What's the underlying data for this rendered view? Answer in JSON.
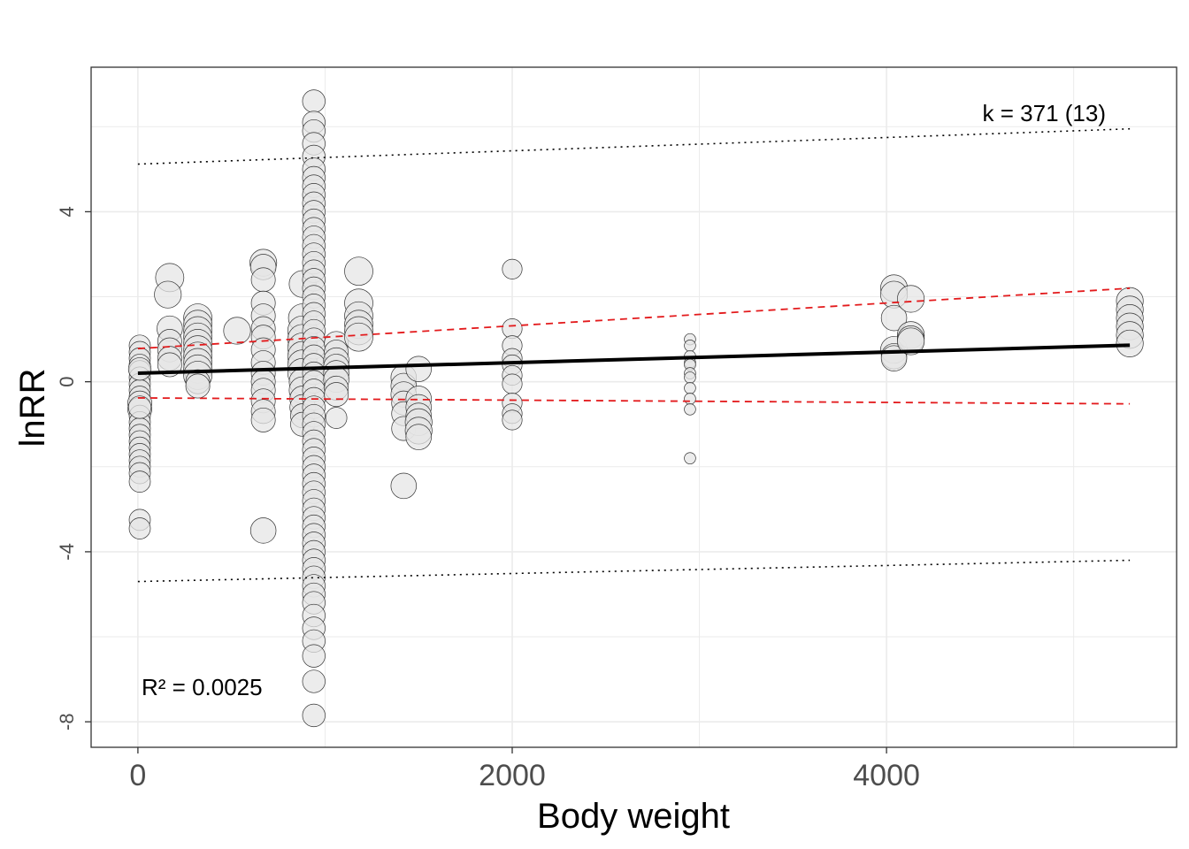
{
  "chart_data": {
    "type": "scatter",
    "title": "",
    "xlabel": "Body weight",
    "ylabel": "lnRR",
    "xlim": [
      -250,
      5550
    ],
    "ylim": [
      -8.6,
      7.4
    ],
    "x_ticks": [
      0,
      2000,
      4000
    ],
    "x_tick_labels": [
      "0",
      "2000",
      "4000"
    ],
    "y_ticks": [
      -8,
      -4,
      0,
      4
    ],
    "y_tick_labels": [
      "-8",
      "-4",
      "0",
      "4"
    ],
    "grid": true,
    "legend": "none",
    "annotations": {
      "k": "k = 371 (13)",
      "r2": "R² = 0.0025"
    },
    "colors": {
      "point_fill": "#e6e6e6",
      "point_stroke": "#333333",
      "fit_line": "#000000",
      "ci_line": "#e31a1c",
      "pi_line": "#000000",
      "grid": "#ebebeb",
      "panel_border": "#333333"
    },
    "fit": {
      "x": [
        0,
        5300
      ],
      "y": [
        0.2,
        0.86
      ]
    },
    "ci_upper": {
      "x": [
        0,
        5300
      ],
      "y": [
        0.78,
        2.2
      ]
    },
    "ci_lower": {
      "x": [
        0,
        5300
      ],
      "y": [
        -0.38,
        -0.52
      ]
    },
    "pi_upper": {
      "x": [
        0,
        5300
      ],
      "y": [
        5.12,
        5.95
      ]
    },
    "pi_lower": {
      "x": [
        0,
        5300
      ],
      "y": [
        -4.7,
        -4.2
      ]
    },
    "points": [
      {
        "x": 10,
        "y": 0.85,
        "s": 0.5
      },
      {
        "x": 10,
        "y": 0.7,
        "s": 0.5
      },
      {
        "x": 10,
        "y": 0.55,
        "s": 0.5
      },
      {
        "x": 10,
        "y": 0.4,
        "s": 0.5
      },
      {
        "x": 10,
        "y": 0.25,
        "s": 0.5
      },
      {
        "x": 10,
        "y": 0.1,
        "s": 0.5
      },
      {
        "x": 10,
        "y": -0.05,
        "s": 0.5
      },
      {
        "x": 10,
        "y": -0.2,
        "s": 0.5
      },
      {
        "x": 10,
        "y": -0.35,
        "s": 0.5
      },
      {
        "x": 10,
        "y": -0.5,
        "s": 0.6
      },
      {
        "x": 10,
        "y": -0.65,
        "s": 0.6
      },
      {
        "x": 10,
        "y": -0.8,
        "s": 0.5
      },
      {
        "x": 10,
        "y": -0.95,
        "s": 0.5
      },
      {
        "x": 10,
        "y": -1.1,
        "s": 0.5
      },
      {
        "x": 10,
        "y": -1.25,
        "s": 0.5
      },
      {
        "x": 10,
        "y": -1.4,
        "s": 0.5
      },
      {
        "x": 10,
        "y": -1.55,
        "s": 0.5
      },
      {
        "x": 10,
        "y": -1.7,
        "s": 0.5
      },
      {
        "x": 10,
        "y": -1.85,
        "s": 0.5
      },
      {
        "x": 10,
        "y": -2.0,
        "s": 0.5
      },
      {
        "x": 10,
        "y": -2.15,
        "s": 0.5
      },
      {
        "x": 10,
        "y": -2.35,
        "s": 0.5
      },
      {
        "x": 10,
        "y": -3.25,
        "s": 0.5
      },
      {
        "x": 10,
        "y": -3.45,
        "s": 0.5
      },
      {
        "x": 10,
        "y": -0.6,
        "s": 0.55
      },
      {
        "x": 10,
        "y": 0.3,
        "s": 0.55
      },
      {
        "x": 170,
        "y": 2.45,
        "s": 0.75
      },
      {
        "x": 160,
        "y": 2.05,
        "s": 0.7
      },
      {
        "x": 170,
        "y": 1.25,
        "s": 0.65
      },
      {
        "x": 170,
        "y": 0.95,
        "s": 0.6
      },
      {
        "x": 170,
        "y": 0.75,
        "s": 0.6
      },
      {
        "x": 170,
        "y": 0.55,
        "s": 0.6
      },
      {
        "x": 170,
        "y": 0.4,
        "s": 0.6
      },
      {
        "x": 320,
        "y": 1.5,
        "s": 0.75
      },
      {
        "x": 320,
        "y": 1.35,
        "s": 0.75
      },
      {
        "x": 320,
        "y": 1.2,
        "s": 0.75
      },
      {
        "x": 320,
        "y": 1.05,
        "s": 0.75
      },
      {
        "x": 320,
        "y": 0.9,
        "s": 0.75
      },
      {
        "x": 320,
        "y": 0.75,
        "s": 0.75
      },
      {
        "x": 320,
        "y": 0.6,
        "s": 0.75
      },
      {
        "x": 320,
        "y": 0.45,
        "s": 0.75
      },
      {
        "x": 320,
        "y": 0.3,
        "s": 0.75
      },
      {
        "x": 320,
        "y": 0.15,
        "s": 0.75
      },
      {
        "x": 320,
        "y": 0.0,
        "s": 0.6
      },
      {
        "x": 320,
        "y": -0.1,
        "s": 0.6
      },
      {
        "x": 530,
        "y": 1.2,
        "s": 0.7
      },
      {
        "x": 670,
        "y": 2.8,
        "s": 0.7
      },
      {
        "x": 670,
        "y": 2.7,
        "s": 0.65
      },
      {
        "x": 670,
        "y": 2.4,
        "s": 0.6
      },
      {
        "x": 670,
        "y": 1.85,
        "s": 0.6
      },
      {
        "x": 670,
        "y": 1.55,
        "s": 0.6
      },
      {
        "x": 670,
        "y": 1.25,
        "s": 0.6
      },
      {
        "x": 670,
        "y": 1.05,
        "s": 0.6
      },
      {
        "x": 670,
        "y": 0.75,
        "s": 0.6
      },
      {
        "x": 670,
        "y": 0.45,
        "s": 0.6
      },
      {
        "x": 670,
        "y": 0.2,
        "s": 0.6
      },
      {
        "x": 670,
        "y": 0.0,
        "s": 0.6
      },
      {
        "x": 670,
        "y": -0.2,
        "s": 0.6
      },
      {
        "x": 670,
        "y": -0.45,
        "s": 0.6
      },
      {
        "x": 670,
        "y": -0.7,
        "s": 0.6
      },
      {
        "x": 670,
        "y": -0.9,
        "s": 0.6
      },
      {
        "x": 670,
        "y": -3.5,
        "s": 0.65
      },
      {
        "x": 880,
        "y": 2.3,
        "s": 0.7
      },
      {
        "x": 880,
        "y": 1.5,
        "s": 0.75
      },
      {
        "x": 880,
        "y": 1.2,
        "s": 0.8
      },
      {
        "x": 880,
        "y": 1.0,
        "s": 0.8
      },
      {
        "x": 880,
        "y": 0.8,
        "s": 0.8
      },
      {
        "x": 880,
        "y": 0.6,
        "s": 0.8
      },
      {
        "x": 880,
        "y": 0.4,
        "s": 0.8
      },
      {
        "x": 880,
        "y": 0.2,
        "s": 0.8
      },
      {
        "x": 880,
        "y": 0.0,
        "s": 0.7
      },
      {
        "x": 880,
        "y": -0.2,
        "s": 0.7
      },
      {
        "x": 880,
        "y": -0.4,
        "s": 0.65
      },
      {
        "x": 880,
        "y": -0.6,
        "s": 0.65
      },
      {
        "x": 880,
        "y": -0.8,
        "s": 0.6
      },
      {
        "x": 880,
        "y": -1.0,
        "s": 0.6
      },
      {
        "x": 940,
        "y": 6.6,
        "s": 0.55
      },
      {
        "x": 940,
        "y": 6.1,
        "s": 0.55
      },
      {
        "x": 940,
        "y": 5.9,
        "s": 0.55
      },
      {
        "x": 940,
        "y": 5.6,
        "s": 0.55
      },
      {
        "x": 940,
        "y": 5.3,
        "s": 0.55
      },
      {
        "x": 940,
        "y": 5.0,
        "s": 0.55
      },
      {
        "x": 940,
        "y": 4.8,
        "s": 0.55
      },
      {
        "x": 940,
        "y": 4.6,
        "s": 0.55
      },
      {
        "x": 940,
        "y": 4.4,
        "s": 0.55
      },
      {
        "x": 940,
        "y": 4.2,
        "s": 0.55
      },
      {
        "x": 940,
        "y": 4.0,
        "s": 0.55
      },
      {
        "x": 940,
        "y": 3.8,
        "s": 0.55
      },
      {
        "x": 940,
        "y": 3.6,
        "s": 0.55
      },
      {
        "x": 940,
        "y": 3.4,
        "s": 0.55
      },
      {
        "x": 940,
        "y": 3.2,
        "s": 0.55
      },
      {
        "x": 940,
        "y": 3.0,
        "s": 0.55
      },
      {
        "x": 940,
        "y": 2.8,
        "s": 0.55
      },
      {
        "x": 940,
        "y": 2.6,
        "s": 0.55
      },
      {
        "x": 940,
        "y": 2.4,
        "s": 0.55
      },
      {
        "x": 940,
        "y": 2.2,
        "s": 0.55
      },
      {
        "x": 940,
        "y": 2.0,
        "s": 0.55
      },
      {
        "x": 940,
        "y": 1.8,
        "s": 0.55
      },
      {
        "x": 940,
        "y": 1.6,
        "s": 0.55
      },
      {
        "x": 940,
        "y": 1.4,
        "s": 0.55
      },
      {
        "x": 940,
        "y": 1.2,
        "s": 0.55
      },
      {
        "x": 940,
        "y": 1.0,
        "s": 0.55
      },
      {
        "x": 940,
        "y": 0.8,
        "s": 0.55
      },
      {
        "x": 940,
        "y": 0.6,
        "s": 0.55
      },
      {
        "x": 940,
        "y": 0.4,
        "s": 0.55
      },
      {
        "x": 940,
        "y": 0.2,
        "s": 0.55
      },
      {
        "x": 940,
        "y": 0.0,
        "s": 0.55
      },
      {
        "x": 940,
        "y": -0.2,
        "s": 0.55
      },
      {
        "x": 940,
        "y": -0.4,
        "s": 0.55
      },
      {
        "x": 940,
        "y": -0.6,
        "s": 0.55
      },
      {
        "x": 940,
        "y": -0.8,
        "s": 0.55
      },
      {
        "x": 940,
        "y": -1.0,
        "s": 0.55
      },
      {
        "x": 940,
        "y": -1.2,
        "s": 0.55
      },
      {
        "x": 940,
        "y": -1.4,
        "s": 0.55
      },
      {
        "x": 940,
        "y": -1.6,
        "s": 0.55
      },
      {
        "x": 940,
        "y": -1.8,
        "s": 0.55
      },
      {
        "x": 940,
        "y": -2.0,
        "s": 0.55
      },
      {
        "x": 940,
        "y": -2.2,
        "s": 0.55
      },
      {
        "x": 940,
        "y": -2.4,
        "s": 0.55
      },
      {
        "x": 940,
        "y": -2.6,
        "s": 0.55
      },
      {
        "x": 940,
        "y": -2.8,
        "s": 0.55
      },
      {
        "x": 940,
        "y": -3.0,
        "s": 0.55
      },
      {
        "x": 940,
        "y": -3.2,
        "s": 0.55
      },
      {
        "x": 940,
        "y": -3.4,
        "s": 0.55
      },
      {
        "x": 940,
        "y": -3.6,
        "s": 0.55
      },
      {
        "x": 940,
        "y": -3.8,
        "s": 0.55
      },
      {
        "x": 940,
        "y": -4.0,
        "s": 0.55
      },
      {
        "x": 940,
        "y": -4.2,
        "s": 0.55
      },
      {
        "x": 940,
        "y": -4.4,
        "s": 0.55
      },
      {
        "x": 940,
        "y": -4.6,
        "s": 0.55
      },
      {
        "x": 940,
        "y": -4.8,
        "s": 0.55
      },
      {
        "x": 940,
        "y": -5.0,
        "s": 0.55
      },
      {
        "x": 940,
        "y": -5.2,
        "s": 0.55
      },
      {
        "x": 940,
        "y": -5.5,
        "s": 0.55
      },
      {
        "x": 940,
        "y": -5.8,
        "s": 0.55
      },
      {
        "x": 940,
        "y": -6.1,
        "s": 0.55
      },
      {
        "x": 940,
        "y": -6.45,
        "s": 0.55
      },
      {
        "x": 940,
        "y": -7.05,
        "s": 0.55
      },
      {
        "x": 940,
        "y": -7.85,
        "s": 0.55
      },
      {
        "x": 1060,
        "y": 0.9,
        "s": 0.6
      },
      {
        "x": 1060,
        "y": 0.7,
        "s": 0.6
      },
      {
        "x": 1060,
        "y": 0.5,
        "s": 0.65
      },
      {
        "x": 1060,
        "y": 0.35,
        "s": 0.65
      },
      {
        "x": 1060,
        "y": 0.2,
        "s": 0.65
      },
      {
        "x": 1060,
        "y": 0.05,
        "s": 0.65
      },
      {
        "x": 1060,
        "y": -0.15,
        "s": 0.6
      },
      {
        "x": 1060,
        "y": -0.3,
        "s": 0.6
      },
      {
        "x": 1060,
        "y": -0.85,
        "s": 0.5
      },
      {
        "x": 1180,
        "y": 2.6,
        "s": 0.75
      },
      {
        "x": 1180,
        "y": 1.85,
        "s": 0.75
      },
      {
        "x": 1180,
        "y": 1.55,
        "s": 0.75
      },
      {
        "x": 1180,
        "y": 1.35,
        "s": 0.75
      },
      {
        "x": 1180,
        "y": 1.2,
        "s": 0.75
      },
      {
        "x": 1180,
        "y": 1.05,
        "s": 0.75
      },
      {
        "x": 1420,
        "y": 0.1,
        "s": 0.65
      },
      {
        "x": 1420,
        "y": -0.1,
        "s": 0.65
      },
      {
        "x": 1420,
        "y": -0.3,
        "s": 0.65
      },
      {
        "x": 1420,
        "y": -0.5,
        "s": 0.6
      },
      {
        "x": 1420,
        "y": -0.75,
        "s": 0.6
      },
      {
        "x": 1420,
        "y": -1.1,
        "s": 0.6
      },
      {
        "x": 1420,
        "y": -2.45,
        "s": 0.65
      },
      {
        "x": 1500,
        "y": 0.3,
        "s": 0.65
      },
      {
        "x": 1500,
        "y": -0.4,
        "s": 0.65
      },
      {
        "x": 1500,
        "y": -0.6,
        "s": 0.65
      },
      {
        "x": 1500,
        "y": -0.8,
        "s": 0.65
      },
      {
        "x": 1500,
        "y": -0.95,
        "s": 0.7
      },
      {
        "x": 1500,
        "y": -1.15,
        "s": 0.7
      },
      {
        "x": 1500,
        "y": -1.3,
        "s": 0.65
      },
      {
        "x": 2000,
        "y": 2.65,
        "s": 0.45
      },
      {
        "x": 2000,
        "y": 1.25,
        "s": 0.45
      },
      {
        "x": 2000,
        "y": 0.85,
        "s": 0.45
      },
      {
        "x": 2000,
        "y": 0.55,
        "s": 0.45
      },
      {
        "x": 2000,
        "y": 0.4,
        "s": 0.45
      },
      {
        "x": 2000,
        "y": 0.15,
        "s": 0.45
      },
      {
        "x": 2000,
        "y": -0.05,
        "s": 0.45
      },
      {
        "x": 2000,
        "y": -0.5,
        "s": 0.45
      },
      {
        "x": 2000,
        "y": -0.75,
        "s": 0.45
      },
      {
        "x": 2000,
        "y": -0.9,
        "s": 0.45
      },
      {
        "x": 2950,
        "y": 1.0,
        "s": 0.15
      },
      {
        "x": 2950,
        "y": 0.85,
        "s": 0.15
      },
      {
        "x": 2950,
        "y": 0.6,
        "s": 0.15
      },
      {
        "x": 2950,
        "y": 0.45,
        "s": 0.15
      },
      {
        "x": 2950,
        "y": 0.4,
        "s": 0.15
      },
      {
        "x": 2950,
        "y": 0.2,
        "s": 0.15
      },
      {
        "x": 2950,
        "y": 0.1,
        "s": 0.15
      },
      {
        "x": 2950,
        "y": -0.15,
        "s": 0.15
      },
      {
        "x": 2950,
        "y": -0.4,
        "s": 0.15
      },
      {
        "x": 2950,
        "y": -0.65,
        "s": 0.15
      },
      {
        "x": 2950,
        "y": -1.8,
        "s": 0.15
      },
      {
        "x": 4040,
        "y": 2.2,
        "s": 0.7
      },
      {
        "x": 4040,
        "y": 2.05,
        "s": 0.7
      },
      {
        "x": 4040,
        "y": 1.5,
        "s": 0.65
      },
      {
        "x": 4040,
        "y": 0.75,
        "s": 0.7
      },
      {
        "x": 4040,
        "y": 0.6,
        "s": 0.65
      },
      {
        "x": 4040,
        "y": 0.55,
        "s": 0.65
      },
      {
        "x": 4130,
        "y": 1.95,
        "s": 0.7
      },
      {
        "x": 4130,
        "y": 1.1,
        "s": 0.7
      },
      {
        "x": 4130,
        "y": 1.0,
        "s": 0.7
      },
      {
        "x": 4130,
        "y": 0.95,
        "s": 0.7
      },
      {
        "x": 5300,
        "y": 1.9,
        "s": 0.7
      },
      {
        "x": 5300,
        "y": 1.7,
        "s": 0.7
      },
      {
        "x": 5300,
        "y": 1.5,
        "s": 0.7
      },
      {
        "x": 5300,
        "y": 1.3,
        "s": 0.7
      },
      {
        "x": 5300,
        "y": 1.1,
        "s": 0.7
      },
      {
        "x": 5300,
        "y": 0.9,
        "s": 0.7
      }
    ]
  }
}
